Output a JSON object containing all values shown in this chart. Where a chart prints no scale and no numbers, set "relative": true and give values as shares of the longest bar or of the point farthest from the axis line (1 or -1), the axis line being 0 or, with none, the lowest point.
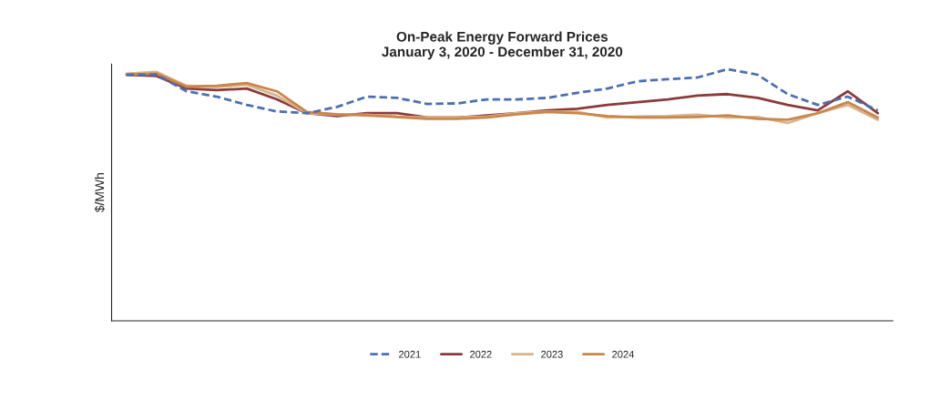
{
  "chart_data": {
    "type": "line",
    "title": "On-Peak Energy Forward Prices\nJanuary 3, 2020 - December 31, 2020",
    "ylabel": "$/MWh",
    "relative": true,
    "categories": [
      null,
      null,
      null,
      null,
      null,
      null,
      null,
      null,
      null,
      null,
      null,
      null,
      null,
      null,
      null,
      null,
      null,
      null,
      null,
      null,
      null,
      null,
      null,
      null,
      null,
      null
    ],
    "series": [
      {
        "name": "2021",
        "color": "#4a6fb5",
        "line_style": "dashed",
        "values": [
          0.978,
          0.978,
          0.912,
          0.891,
          0.858,
          0.832,
          0.825,
          0.85,
          0.891,
          0.886,
          0.862,
          0.864,
          0.88,
          0.88,
          0.886,
          0.906,
          0.923,
          0.952,
          0.96,
          0.967,
          1.0,
          0.978,
          0.901,
          0.858,
          0.891,
          0.836
        ]
      },
      {
        "name": "2022",
        "color": "#8b3a3a",
        "values": [
          0.978,
          0.973,
          0.923,
          0.917,
          0.923,
          0.88,
          0.825,
          0.814,
          0.825,
          0.825,
          0.808,
          0.808,
          0.816,
          0.825,
          0.836,
          0.843,
          0.858,
          0.869,
          0.88,
          0.895,
          0.901,
          0.886,
          0.858,
          0.836,
          0.912,
          0.825
        ]
      },
      {
        "name": "2023",
        "color": "#d9b38c",
        "values": [
          0.982,
          0.989,
          0.934,
          0.93,
          0.938,
          0.895,
          0.825,
          0.819,
          0.819,
          0.812,
          0.808,
          0.808,
          0.812,
          0.825,
          0.832,
          0.83,
          0.808,
          0.812,
          0.814,
          0.819,
          0.808,
          0.81,
          0.786,
          0.825,
          0.858,
          0.799
        ]
      },
      {
        "name": "2024",
        "color": "#c8864a",
        "values": [
          0.978,
          0.982,
          0.93,
          0.934,
          0.945,
          0.912,
          0.83,
          0.821,
          0.816,
          0.81,
          0.803,
          0.803,
          0.808,
          0.821,
          0.83,
          0.825,
          0.814,
          0.808,
          0.808,
          0.81,
          0.816,
          0.803,
          0.799,
          0.825,
          0.869,
          0.808
        ]
      }
    ],
    "legend": "bottom"
  }
}
